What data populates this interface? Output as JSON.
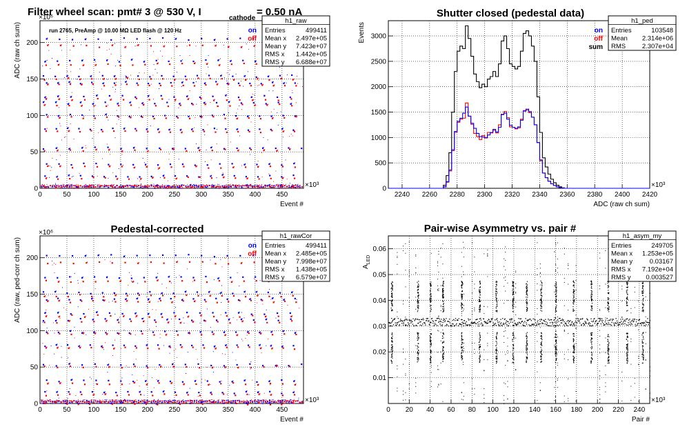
{
  "main_title": {
    "prefix": "Filter wheel scan: pmt#   3 @   530 V, I",
    "sub": "cathode",
    "suffix": " = 0.50 nA"
  },
  "colors": {
    "on": "#0000ff",
    "off": "#ff0000",
    "sum": "#000000",
    "grid": "#000000"
  },
  "chart_data": [
    {
      "id": "h1_raw",
      "type": "scatter",
      "title": "",
      "xlabel": "Event #",
      "ylabel": "ADC (raw ch sum)",
      "x_exponent": "×10³",
      "y_exponent": "×10⁶",
      "xlim": [
        0,
        490
      ],
      "ylim": [
        0,
        230
      ],
      "x_ticks": [
        0,
        50,
        100,
        150,
        200,
        250,
        300,
        350,
        400,
        450
      ],
      "y_ticks": [
        0,
        50,
        100,
        150,
        200
      ],
      "annotation": "run 2765, PreAmp @ 10.00 MΩ LED flash @  120 Hz",
      "legend": [
        {
          "name": "on",
          "color": "#0000ff"
        },
        {
          "name": "off",
          "color": "#ff0000"
        }
      ],
      "stats": {
        "name": "h1_raw",
        "rows": [
          [
            "Entries",
            "499411"
          ],
          [
            "Mean x",
            "2.497e+05"
          ],
          [
            "Mean y",
            "7.423e+07"
          ],
          [
            "RMS x",
            "1.442e+05"
          ],
          [
            "RMS y",
            "6.688e+07"
          ]
        ]
      },
      "series": [
        {
          "name": "on",
          "levels": [
            3,
            17,
            33,
            55,
            81,
            100,
            117,
            126,
            145,
            154,
            175,
            205
          ]
        },
        {
          "name": "off",
          "levels": [
            2,
            14,
            29,
            52,
            78,
            97,
            114,
            122,
            142,
            150,
            170,
            195
          ]
        }
      ]
    },
    {
      "id": "h1_ped",
      "type": "line",
      "title": "Shutter closed (pedestal data)",
      "xlabel": "ADC (raw ch sum)",
      "ylabel": "Events",
      "x_exponent": "×10³",
      "xlim": [
        2230,
        2420
      ],
      "ylim": [
        0,
        3300
      ],
      "x_ticks": [
        2240,
        2260,
        2280,
        2300,
        2320,
        2340,
        2360,
        2380,
        2400,
        2420
      ],
      "y_ticks": [
        0,
        500,
        1000,
        1500,
        2000,
        2500,
        3000
      ],
      "legend": [
        {
          "name": "on",
          "color": "#0000ff"
        },
        {
          "name": "off",
          "color": "#ff0000"
        },
        {
          "name": "sum",
          "color": "#000000"
        }
      ],
      "stats": {
        "name": "h1_ped",
        "rows": [
          [
            "Entries",
            "103548"
          ],
          [
            "Mean",
            "2.314e+06"
          ],
          [
            "RMS",
            "2.307e+04"
          ]
        ]
      },
      "bin_width": 2,
      "x_start": 2268,
      "series": [
        {
          "name": "sum",
          "values": [
            0,
            60,
            250,
            700,
            1500,
            2300,
            2700,
            2800,
            2750,
            3200,
            2950,
            2600,
            2250,
            2100,
            1980,
            2050,
            2000,
            2150,
            2200,
            2300,
            2200,
            2450,
            2900,
            3000,
            2750,
            2450,
            2400,
            2350,
            2400,
            2700,
            3050,
            3100,
            3000,
            2800,
            2500,
            1800,
            1100,
            600,
            420,
            280,
            180,
            110,
            60,
            30,
            10,
            0
          ]
        },
        {
          "name": "on",
          "values": [
            0,
            30,
            130,
            360,
            760,
            1120,
            1320,
            1380,
            1480,
            1600,
            1420,
            1280,
            1180,
            1080,
            1020,
            1010,
            1000,
            1050,
            1100,
            1160,
            1110,
            1200,
            1450,
            1480,
            1360,
            1240,
            1200,
            1180,
            1210,
            1340,
            1520,
            1560,
            1510,
            1400,
            1250,
            900,
            560,
            300,
            210,
            140,
            90,
            55,
            30,
            15,
            5,
            0
          ]
        },
        {
          "name": "off",
          "values": [
            0,
            30,
            120,
            340,
            740,
            1100,
            1300,
            1360,
            1380,
            1680,
            1420,
            1260,
            1080,
            1020,
            960,
            1040,
            990,
            1100,
            1090,
            1140,
            1090,
            1250,
            1460,
            1510,
            1390,
            1210,
            1200,
            1170,
            1190,
            1360,
            1530,
            1540,
            1490,
            1400,
            1250,
            900,
            540,
            300,
            210,
            140,
            90,
            55,
            30,
            15,
            5,
            0
          ]
        }
      ]
    },
    {
      "id": "h1_rawCor",
      "type": "scatter",
      "title": "Pedestal-corrected",
      "xlabel": "Event #",
      "ylabel": "ADC (raw, ped-corr ch sum)",
      "x_exponent": "×10³",
      "y_exponent": "×10⁶",
      "xlim": [
        0,
        490
      ],
      "ylim": [
        0,
        230
      ],
      "x_ticks": [
        0,
        50,
        100,
        150,
        200,
        250,
        300,
        350,
        400,
        450
      ],
      "y_ticks": [
        0,
        50,
        100,
        150,
        200
      ],
      "legend": [
        {
          "name": "on",
          "color": "#0000ff"
        },
        {
          "name": "off",
          "color": "#ff0000"
        }
      ],
      "stats": {
        "name": "h1_rawCor",
        "rows": [
          [
            "Entries",
            "499411"
          ],
          [
            "Mean x",
            "2.485e+05"
          ],
          [
            "Mean y",
            "7.998e+07"
          ],
          [
            "RMS x",
            "1.438e+05"
          ],
          [
            "RMS y",
            "6.579e+07"
          ]
        ]
      },
      "series": [
        {
          "name": "on",
          "levels": [
            1,
            15,
            31,
            53,
            79,
            98,
            115,
            124,
            143,
            152,
            173,
            203
          ]
        },
        {
          "name": "off",
          "levels": [
            0,
            12,
            27,
            50,
            76,
            95,
            112,
            120,
            140,
            148,
            168,
            193
          ]
        }
      ]
    },
    {
      "id": "h1_asym_my",
      "type": "scatter",
      "title": "Pair-wise Asymmetry vs. pair #",
      "xlabel": "Pair #",
      "ylabel": "A_LED",
      "x_exponent": "×10³",
      "xlim": [
        0,
        250
      ],
      "ylim": [
        0,
        0.065
      ],
      "x_ticks": [
        0,
        20,
        40,
        60,
        80,
        100,
        120,
        140,
        160,
        180,
        200,
        220,
        240
      ],
      "y_ticks": [
        0.01,
        0.02,
        0.03,
        0.04,
        0.05,
        0.06
      ],
      "band_center": 0.0317,
      "spike_positions": [
        3,
        28,
        40,
        52,
        70,
        87,
        103,
        119,
        132,
        146,
        160,
        177,
        194,
        210,
        228,
        243
      ],
      "stats": {
        "name": "h1_asym_my",
        "rows": [
          [
            "Entries",
            "249705"
          ],
          [
            "Mean x",
            "1.253e+05"
          ],
          [
            "Mean y",
            "0.03167"
          ],
          [
            "RMS x",
            "7.192e+04"
          ],
          [
            "RMS y",
            "0.003527"
          ]
        ]
      }
    }
  ]
}
